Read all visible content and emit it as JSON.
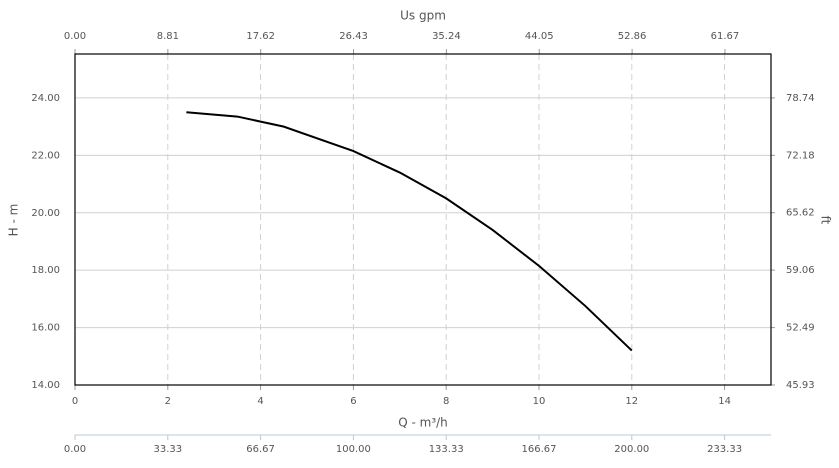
{
  "chart_data": {
    "type": "line",
    "xlabel": "Q - m³/h",
    "ylabel": "H - m",
    "x2label": "Us gpm",
    "y2label": "ft",
    "x": [
      2.4,
      3.5,
      4.5,
      6,
      7,
      8,
      9,
      10,
      11,
      12
    ],
    "series": [
      {
        "color": "#000000",
        "values": [
          23.5,
          23.35,
          23.0,
          22.15,
          21.4,
          20.5,
          19.4,
          18.15,
          16.75,
          15.2
        ]
      }
    ],
    "xlim": [
      0,
      15
    ],
    "xticks": [
      0,
      2,
      4,
      6,
      8,
      10,
      12,
      14
    ],
    "ylim": [
      14,
      25.53
    ],
    "yticks": [
      {
        "value": 14,
        "label": "14.00"
      },
      {
        "value": 16,
        "label": "16.00"
      },
      {
        "value": 18,
        "label": "18.00"
      },
      {
        "value": 20,
        "label": "20.00"
      },
      {
        "value": 22,
        "label": "22.00"
      },
      {
        "value": 24,
        "label": "24.00"
      }
    ],
    "x2lim": [
      0,
      66.04
    ],
    "x2ticks": [
      {
        "value": 0,
        "label": "0.00"
      },
      8.81,
      17.62,
      26.43,
      35.24,
      44.05,
      52.86,
      61.67
    ],
    "y2lim": [
      45.93,
      83.76
    ],
    "y2ticks": [
      45.93,
      52.49,
      59.06,
      65.62,
      72.18,
      78.74
    ],
    "x3lim": [
      0,
      250
    ],
    "x3ticks": [
      {
        "value": 0,
        "label": "0.00"
      },
      33.33,
      66.67,
      {
        "value": 100,
        "label": "100.00"
      },
      133.33,
      166.67,
      {
        "value": 200,
        "label": "200.00"
      },
      233.33
    ],
    "grid": true
  }
}
